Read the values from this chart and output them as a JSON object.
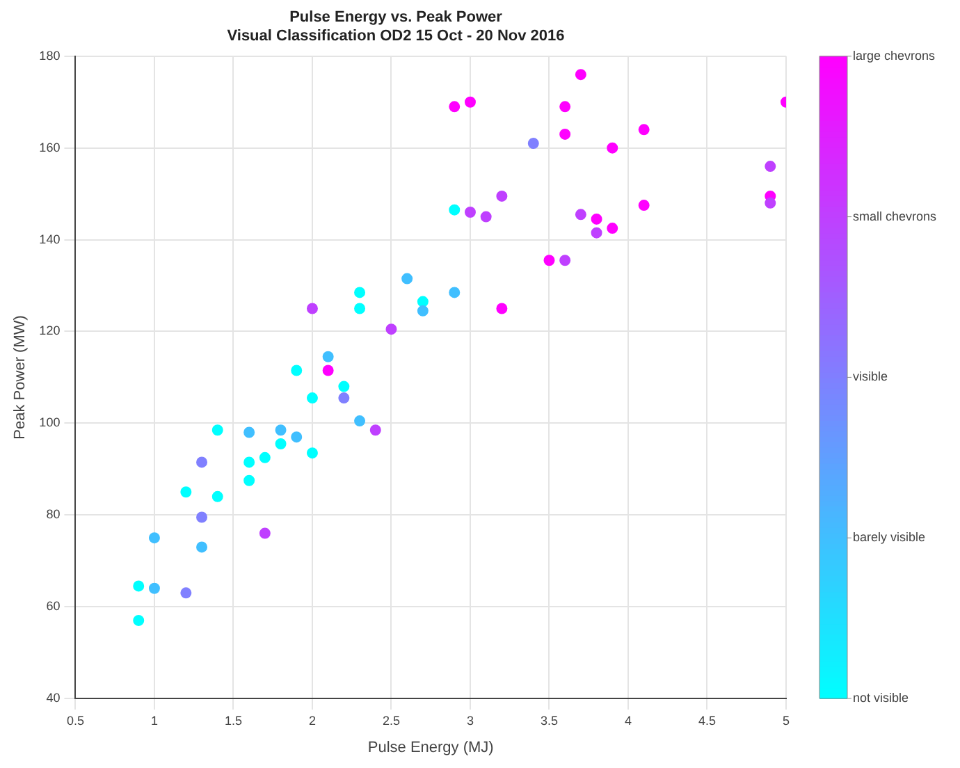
{
  "chart_data": {
    "type": "scatter",
    "title": "Pulse Energy vs. Peak Power",
    "subtitle": "Visual Classification OD2 15 Oct - 20 Nov 2016",
    "xlabel": "Pulse Energy (MJ)",
    "ylabel": "Peak Power (MW)",
    "x": [
      2.9,
      3.0,
      3.7,
      3.6,
      3.6,
      3.4,
      4.1,
      3.9,
      5.0,
      4.9,
      4.9,
      4.9,
      3.2,
      2.9,
      3.0,
      3.1,
      3.7,
      3.8,
      3.8,
      3.9,
      4.1,
      3.5,
      3.6,
      3.2,
      2.9,
      2.7,
      2.7,
      2.6,
      2.0,
      2.3,
      2.3,
      2.5,
      2.1,
      1.9,
      2.1,
      2.2,
      2.2,
      2.3,
      2.4,
      2.0,
      1.4,
      1.6,
      1.8,
      1.8,
      1.9,
      2.0,
      1.7,
      1.6,
      1.3,
      1.6,
      1.2,
      1.4,
      1.3,
      1.7,
      1.0,
      1.3,
      0.9,
      1.0,
      1.2,
      0.9
    ],
    "values": [
      169,
      170,
      176,
      169,
      163,
      161,
      164,
      160,
      170,
      156,
      149.5,
      148,
      149.5,
      146.5,
      146,
      145,
      145.5,
      144.5,
      141.5,
      142.5,
      147.5,
      135.5,
      135.5,
      125,
      128.5,
      126.5,
      124.5,
      131.5,
      125,
      128.5,
      125,
      120.5,
      114.5,
      111.5,
      111.5,
      108,
      105.5,
      100.5,
      98.5,
      105.5,
      98.5,
      98,
      98.5,
      95.5,
      97,
      93.5,
      92.5,
      91.5,
      91.5,
      87.5,
      85,
      84,
      79.5,
      76,
      75,
      73,
      64.5,
      64,
      63,
      57
    ],
    "cvalues": [
      4,
      4,
      4,
      4,
      4,
      2,
      4,
      4,
      4,
      3,
      4,
      3,
      3,
      0,
      3,
      3,
      3,
      4,
      3,
      4,
      4,
      4,
      3,
      4,
      1,
      0,
      1,
      1,
      3,
      0,
      0,
      3,
      1,
      0,
      4,
      0,
      2,
      1,
      3,
      0,
      0,
      1,
      1,
      0,
      1,
      0,
      0,
      0,
      2,
      0,
      0,
      0,
      2,
      3,
      1,
      1,
      0,
      1,
      2,
      0
    ],
    "clim": [
      0,
      4
    ],
    "cticks": [
      {
        "value": 0,
        "label": "not visible"
      },
      {
        "value": 1,
        "label": "barely visible"
      },
      {
        "value": 2,
        "label": "visible"
      },
      {
        "value": 3,
        "label": "small chevrons"
      },
      {
        "value": 4,
        "label": "large chevrons"
      }
    ],
    "xlim": [
      0.5,
      5
    ],
    "xticks": [
      0.5,
      1,
      1.5,
      2,
      2.5,
      3,
      3.5,
      4,
      4.5,
      5
    ],
    "ylim": [
      40,
      180
    ],
    "yticks": [
      40,
      60,
      80,
      100,
      120,
      140,
      160,
      180
    ],
    "grid": true,
    "marker": "circle",
    "legend": false
  }
}
